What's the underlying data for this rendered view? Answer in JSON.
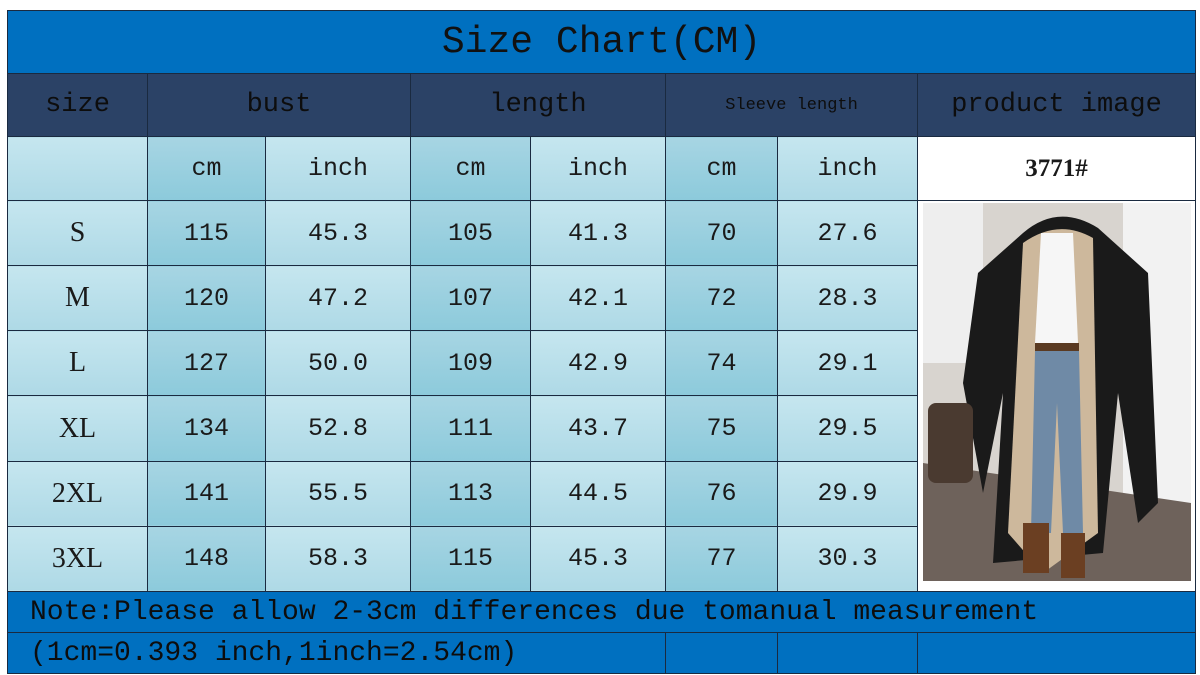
{
  "title": "Size Chart(CM)",
  "headers": {
    "size": "size",
    "bust": "bust",
    "length": "length",
    "sleeve": "Sleeve length",
    "product": "product image"
  },
  "units": {
    "cm": "cm",
    "inch": "inch"
  },
  "product_code": "3771#",
  "rows": [
    {
      "size": "S",
      "bust_cm": "115",
      "bust_in": "45.3",
      "len_cm": "105",
      "len_in": "41.3",
      "sl_cm": "70",
      "sl_in": "27.6"
    },
    {
      "size": "M",
      "bust_cm": "120",
      "bust_in": "47.2",
      "len_cm": "107",
      "len_in": "42.1",
      "sl_cm": "72",
      "sl_in": "28.3"
    },
    {
      "size": "L",
      "bust_cm": "127",
      "bust_in": "50.0",
      "len_cm": "109",
      "len_in": "42.9",
      "sl_cm": "74",
      "sl_in": "29.1"
    },
    {
      "size": "XL",
      "bust_cm": "134",
      "bust_in": "52.8",
      "len_cm": "111",
      "len_in": "43.7",
      "sl_cm": "75",
      "sl_in": "29.5"
    },
    {
      "size": "2XL",
      "bust_cm": "141",
      "bust_in": "55.5",
      "len_cm": "113",
      "len_in": "44.5",
      "sl_cm": "76",
      "sl_in": "29.9"
    },
    {
      "size": "3XL",
      "bust_cm": "148",
      "bust_in": "58.3",
      "len_cm": "115",
      "len_in": "45.3",
      "sl_cm": "77",
      "sl_in": "30.3"
    }
  ],
  "note": "Note:Please allow 2-3cm differences due tomanual measurement",
  "conversion": "(1cm=0.393 inch,1inch=2.54cm)",
  "colors": {
    "title_bg": "#0070c0",
    "header_bg": "#2b4266",
    "cell_light": "#b8e0ea",
    "cell_dark": "#92cddc"
  }
}
